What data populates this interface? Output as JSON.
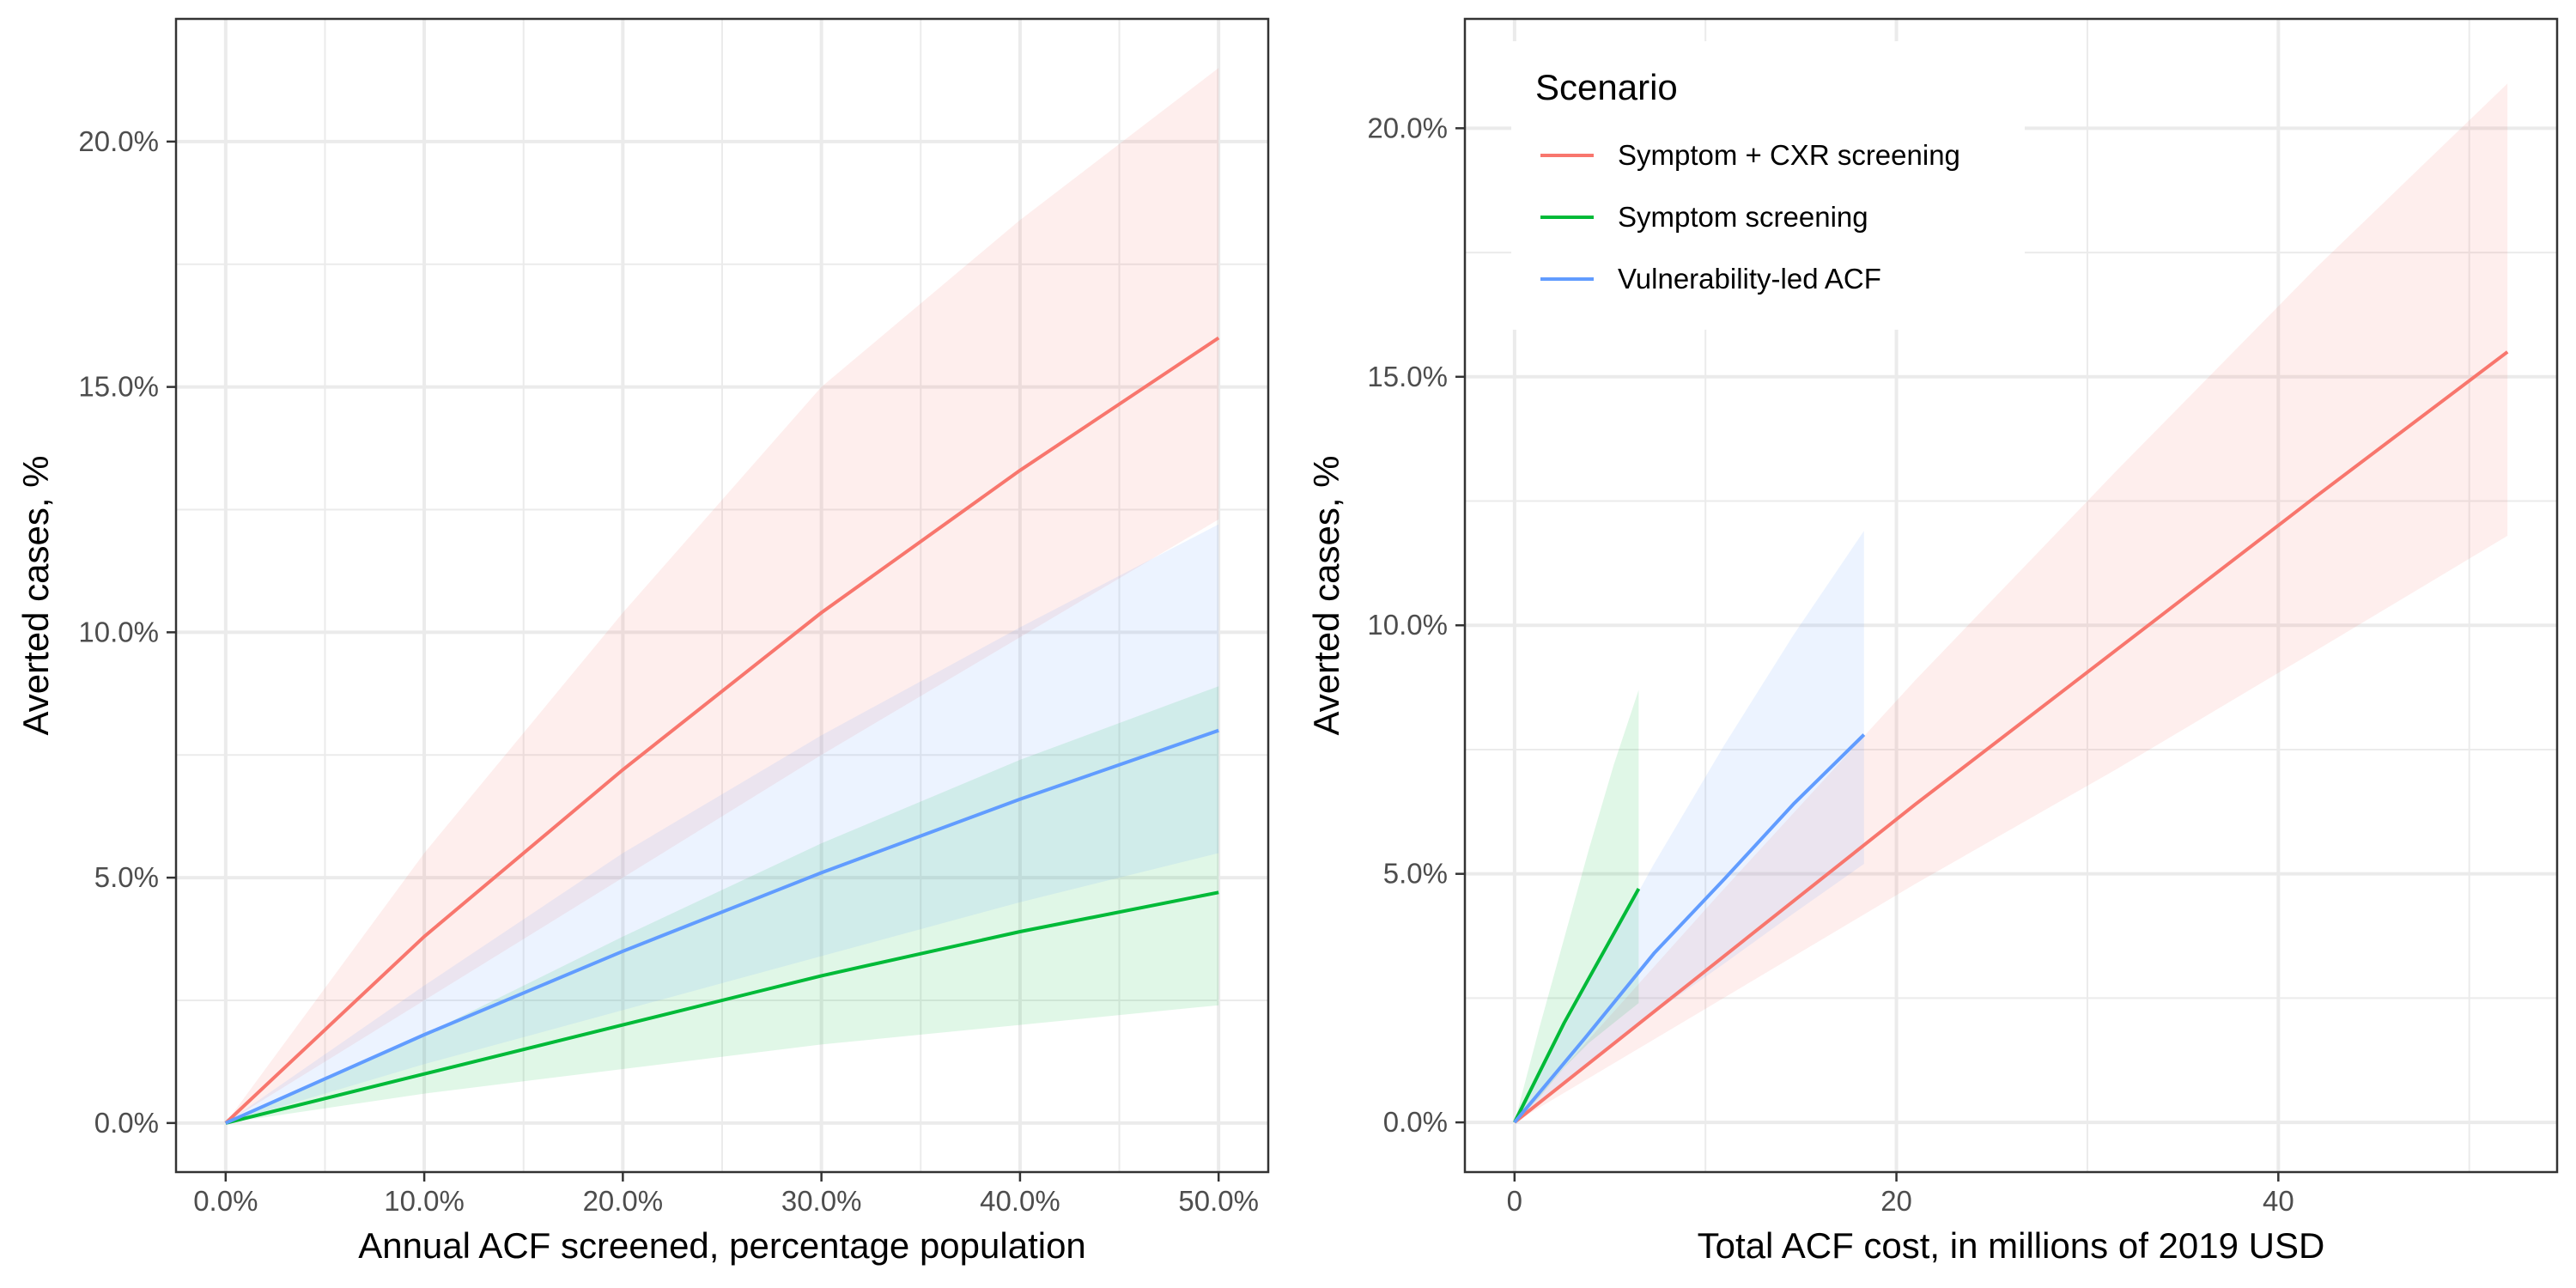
{
  "colors": {
    "Symptom + CXR screening": "#F8766D",
    "Symptom screening": "#00BA38",
    "Vulnerability-led ACF": "#619CFF",
    "panel_border": "#333333",
    "grid": "#ebebeb",
    "tick": "#4d4d4d"
  },
  "legend": {
    "title": "Scenario",
    "items": [
      "Symptom + CXR screening",
      "Symptom screening",
      "Vulnerability-led ACF"
    ]
  },
  "chart_data": [
    {
      "type": "line",
      "panel": "left",
      "xlabel": "Annual ACF screened, percentage population",
      "ylabel": "Averted cases, %",
      "xlim": [
        -0.025,
        0.525
      ],
      "ylim": [
        -0.01,
        0.225
      ],
      "x_ticks": [
        0,
        0.1,
        0.2,
        0.3,
        0.4,
        0.5
      ],
      "x_tick_labels": [
        "0.0%",
        "10.0%",
        "20.0%",
        "30.0%",
        "40.0%",
        "50.0%"
      ],
      "y_ticks": [
        0,
        0.05,
        0.1,
        0.15,
        0.2
      ],
      "y_tick_labels": [
        "0.0%",
        "5.0%",
        "10.0%",
        "15.0%",
        "20.0%"
      ],
      "grid": true,
      "series": [
        {
          "name": "Symptom + CXR screening",
          "x": [
            0,
            0.1,
            0.2,
            0.3,
            0.4,
            0.5
          ],
          "y": [
            0,
            0.038,
            0.072,
            0.104,
            0.133,
            0.16
          ],
          "lower": [
            0,
            0.025,
            0.05,
            0.075,
            0.099,
            0.123
          ],
          "upper": [
            0,
            0.055,
            0.104,
            0.15,
            0.184,
            0.215
          ]
        },
        {
          "name": "Symptom screening",
          "x": [
            0,
            0.1,
            0.2,
            0.3,
            0.4,
            0.5
          ],
          "y": [
            0,
            0.01,
            0.02,
            0.03,
            0.039,
            0.047
          ],
          "lower": [
            0,
            0.006,
            0.011,
            0.016,
            0.02,
            0.024
          ],
          "upper": [
            0,
            0.018,
            0.038,
            0.057,
            0.074,
            0.089
          ]
        },
        {
          "name": "Vulnerability-led ACF",
          "x": [
            0,
            0.1,
            0.2,
            0.3,
            0.4,
            0.5
          ],
          "y": [
            0,
            0.018,
            0.035,
            0.051,
            0.066,
            0.08
          ],
          "lower": [
            0,
            0.012,
            0.023,
            0.034,
            0.045,
            0.055
          ],
          "upper": [
            0,
            0.028,
            0.055,
            0.079,
            0.101,
            0.122
          ]
        }
      ]
    },
    {
      "type": "line",
      "panel": "right",
      "xlabel": "Total ACF cost, in millions of 2019 USD",
      "ylabel": "Averted cases, %",
      "xlim": [
        -2.6,
        54.6
      ],
      "ylim": [
        -0.01,
        0.222
      ],
      "x_ticks": [
        0,
        20,
        40
      ],
      "x_tick_labels": [
        "0",
        "20",
        "40"
      ],
      "y_ticks": [
        0,
        0.05,
        0.1,
        0.15,
        0.2
      ],
      "y_tick_labels": [
        "0.0%",
        "5.0%",
        "10.0%",
        "15.0%",
        "20.0%"
      ],
      "grid": true,
      "legend_position": "top-left",
      "series": [
        {
          "name": "Symptom + CXR screening",
          "x": [
            0,
            10.5,
            21,
            31.5,
            42,
            52
          ],
          "y": [
            0,
            0.032,
            0.064,
            0.095,
            0.126,
            0.155
          ],
          "lower": [
            0,
            0.024,
            0.048,
            0.071,
            0.095,
            0.118
          ],
          "upper": [
            0,
            0.045,
            0.089,
            0.131,
            0.172,
            0.209
          ]
        },
        {
          "name": "Symptom screening",
          "x": [
            0,
            1.3,
            2.6,
            3.9,
            5.2,
            6.5
          ],
          "y": [
            0,
            0.01,
            0.02,
            0.029,
            0.038,
            0.047
          ],
          "lower": [
            0,
            0.005,
            0.011,
            0.016,
            0.02,
            0.024
          ],
          "upper": [
            0,
            0.019,
            0.037,
            0.055,
            0.072,
            0.087
          ]
        },
        {
          "name": "Vulnerability-led ACF",
          "x": [
            0,
            3.7,
            7.3,
            11,
            14.6,
            18.3
          ],
          "y": [
            0,
            0.017,
            0.034,
            0.049,
            0.064,
            0.078
          ],
          "lower": [
            0,
            0.011,
            0.022,
            0.032,
            0.042,
            0.052
          ],
          "upper": [
            0,
            0.027,
            0.052,
            0.076,
            0.098,
            0.119
          ]
        }
      ]
    }
  ]
}
